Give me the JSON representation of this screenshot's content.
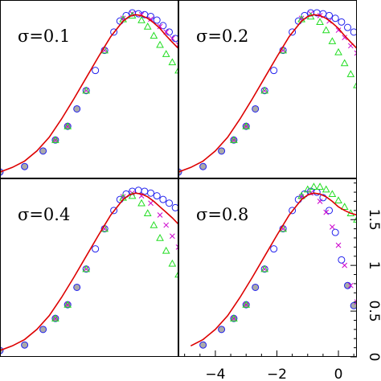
{
  "chart_data": {
    "type": "scatter",
    "layout": "2x2 grid of panels sharing axes",
    "xaxis": {
      "ticks": [
        -4,
        -2,
        0
      ],
      "tick_labels": [
        "−4",
        "−2",
        "0"
      ],
      "range": [
        -5.2,
        0.6
      ]
    },
    "yaxis": {
      "ticks": [
        0,
        0.5,
        1,
        1.5
      ],
      "tick_labels": [
        "0",
        "0.5",
        "1",
        "1.5"
      ],
      "range": [
        0,
        1.95
      ],
      "position": "right"
    },
    "colors": {
      "curve": "#dd0000",
      "circles": "#2222ee",
      "crosses": "#cc00cc",
      "triangles": "#22dd22",
      "overlap_fill": "#aaaaaa"
    },
    "panels": [
      {
        "label": "σ=0.1",
        "curve": {
          "x": [
            -5.2,
            -4.8,
            -4.4,
            -4,
            -3.6,
            -3.2,
            -2.8,
            -2.4,
            -2,
            -1.6,
            -1.2,
            -1,
            -0.8,
            -0.6,
            -0.4,
            -0.2,
            0,
            0.2,
            0.4,
            0.6
          ],
          "y": [
            0.07,
            0.12,
            0.19,
            0.3,
            0.45,
            0.65,
            0.87,
            1.1,
            1.33,
            1.55,
            1.72,
            1.77,
            1.79,
            1.78,
            1.75,
            1.7,
            1.64,
            1.56,
            1.49,
            1.42
          ]
        },
        "series": [
          {
            "marker": "circle",
            "x": [
              -5.2,
              -4.4,
              -3.8,
              -3.4,
              -3,
              -2.7,
              -2.4,
              -2.1,
              -1.8,
              -1.5,
              -1.3,
              -1.1,
              -0.9,
              -0.7,
              -0.5,
              -0.3,
              -0.1,
              0.1,
              0.3,
              0.5
            ],
            "y": [
              0.07,
              0.13,
              0.3,
              0.42,
              0.57,
              0.76,
              0.96,
              1.18,
              1.4,
              1.6,
              1.72,
              1.78,
              1.81,
              1.8,
              1.79,
              1.77,
              1.73,
              1.67,
              1.6,
              1.53
            ]
          },
          {
            "marker": "cross",
            "x": [
              -3.4,
              -3,
              -2.4,
              -1.8,
              -1.2,
              -0.9,
              -0.6,
              -0.3,
              0,
              0.2,
              0.4,
              0.6
            ],
            "y": [
              0.42,
              0.57,
              0.96,
              1.4,
              1.75,
              1.8,
              1.79,
              1.74,
              1.66,
              1.6,
              1.53,
              1.46
            ]
          },
          {
            "marker": "triangle",
            "x": [
              -3.4,
              -3,
              -2.4,
              -1.8,
              -1.2,
              -0.9,
              -0.6,
              -0.4,
              -0.2,
              0,
              0.2,
              0.4,
              0.6
            ],
            "y": [
              0.42,
              0.57,
              0.96,
              1.4,
              1.74,
              1.78,
              1.73,
              1.66,
              1.56,
              1.46,
              1.36,
              1.27,
              1.18
            ]
          }
        ]
      },
      {
        "label": "σ=0.2",
        "curve": {
          "x": [
            -5.2,
            -4.8,
            -4.4,
            -4,
            -3.6,
            -3.2,
            -2.8,
            -2.4,
            -2,
            -1.6,
            -1.2,
            -1,
            -0.8,
            -0.6,
            -0.4,
            -0.2,
            0,
            0.2,
            0.4,
            0.6
          ],
          "y": [
            0.07,
            0.12,
            0.19,
            0.3,
            0.45,
            0.65,
            0.87,
            1.1,
            1.33,
            1.55,
            1.72,
            1.77,
            1.79,
            1.78,
            1.75,
            1.7,
            1.64,
            1.56,
            1.49,
            1.42
          ]
        },
        "series": [
          {
            "marker": "circle",
            "x": [
              -5.2,
              -4.4,
              -3.8,
              -3.4,
              -3,
              -2.7,
              -2.4,
              -2.1,
              -1.8,
              -1.5,
              -1.3,
              -1.1,
              -0.9,
              -0.7,
              -0.5,
              -0.3,
              -0.1,
              0.1,
              0.3,
              0.5
            ],
            "y": [
              0.07,
              0.13,
              0.3,
              0.42,
              0.57,
              0.76,
              0.96,
              1.18,
              1.4,
              1.6,
              1.72,
              1.78,
              1.81,
              1.81,
              1.8,
              1.78,
              1.75,
              1.71,
              1.65,
              1.6
            ]
          },
          {
            "marker": "cross",
            "x": [
              -3.4,
              -3,
              -2.4,
              -1.8,
              -1.2,
              -0.9,
              -0.6,
              -0.3,
              0,
              0.2,
              0.4,
              0.6
            ],
            "y": [
              0.42,
              0.57,
              0.96,
              1.4,
              1.75,
              1.8,
              1.78,
              1.72,
              1.62,
              1.54,
              1.45,
              1.37
            ]
          },
          {
            "marker": "triangle",
            "x": [
              -3.4,
              -3,
              -2.4,
              -1.8,
              -1.2,
              -0.9,
              -0.6,
              -0.4,
              -0.2,
              0,
              0.2,
              0.4,
              0.6
            ],
            "y": [
              0.42,
              0.57,
              0.96,
              1.4,
              1.74,
              1.77,
              1.71,
              1.62,
              1.5,
              1.38,
              1.26,
              1.14,
              1.02
            ]
          }
        ]
      },
      {
        "label": "σ=0.4",
        "curve": {
          "x": [
            -5.2,
            -4.8,
            -4.4,
            -4,
            -3.6,
            -3.2,
            -2.8,
            -2.4,
            -2,
            -1.6,
            -1.2,
            -1,
            -0.8,
            -0.6,
            -0.4,
            -0.2,
            0,
            0.2,
            0.4,
            0.6
          ],
          "y": [
            0.07,
            0.12,
            0.19,
            0.3,
            0.45,
            0.65,
            0.87,
            1.1,
            1.33,
            1.55,
            1.72,
            1.77,
            1.79,
            1.78,
            1.75,
            1.7,
            1.64,
            1.58,
            1.52,
            1.45
          ]
        },
        "series": [
          {
            "marker": "circle",
            "x": [
              -5.2,
              -4.4,
              -3.8,
              -3.4,
              -3,
              -2.7,
              -2.4,
              -2.1,
              -1.8,
              -1.5,
              -1.3,
              -1.1,
              -0.9,
              -0.7,
              -0.5,
              -0.3,
              -0.1,
              0.1,
              0.3,
              0.5
            ],
            "y": [
              0.07,
              0.13,
              0.3,
              0.42,
              0.57,
              0.76,
              0.96,
              1.18,
              1.4,
              1.6,
              1.72,
              1.78,
              1.81,
              1.82,
              1.81,
              1.79,
              1.76,
              1.72,
              1.68,
              1.63
            ]
          },
          {
            "marker": "cross",
            "x": [
              -3.4,
              -3,
              -2.4,
              -1.8,
              -1.2,
              -0.9,
              -0.6,
              -0.3,
              0,
              0.2,
              0.4,
              0.6
            ],
            "y": [
              0.42,
              0.57,
              0.96,
              1.4,
              1.75,
              1.79,
              1.76,
              1.68,
              1.55,
              1.44,
              1.32,
              1.2
            ]
          },
          {
            "marker": "triangle",
            "x": [
              -3.4,
              -3,
              -2.4,
              -1.8,
              -1.2,
              -0.9,
              -0.6,
              -0.4,
              -0.2,
              0,
              0.2,
              0.4,
              0.6
            ],
            "y": [
              0.42,
              0.57,
              0.96,
              1.4,
              1.74,
              1.76,
              1.68,
              1.57,
              1.44,
              1.3,
              1.16,
              1.02,
              0.9
            ]
          }
        ]
      },
      {
        "label": "σ=0.8",
        "curve": {
          "x": [
            -4.8,
            -4.4,
            -4,
            -3.6,
            -3.2,
            -2.8,
            -2.4,
            -2,
            -1.6,
            -1.2,
            -1,
            -0.8,
            -0.6,
            -0.4,
            -0.2,
            0,
            0.2,
            0.4,
            0.6
          ],
          "y": [
            0.12,
            0.19,
            0.3,
            0.45,
            0.65,
            0.87,
            1.1,
            1.33,
            1.55,
            1.72,
            1.77,
            1.79,
            1.78,
            1.75,
            1.7,
            1.64,
            1.6,
            1.57,
            1.55
          ]
        },
        "series": [
          {
            "marker": "circle",
            "x": [
              -4.4,
              -3.8,
              -3.4,
              -3,
              -2.7,
              -2.4,
              -2.1,
              -1.8,
              -1.5,
              -1.3,
              -1.1,
              -0.9,
              -0.7,
              -0.5,
              -0.3,
              -0.1,
              0.1,
              0.3,
              0.5
            ],
            "y": [
              0.13,
              0.3,
              0.42,
              0.57,
              0.76,
              0.96,
              1.18,
              1.4,
              1.6,
              1.72,
              1.78,
              1.81,
              1.8,
              1.74,
              1.6,
              1.36,
              1.06,
              0.78,
              0.56
            ]
          },
          {
            "marker": "cross",
            "x": [
              -3.4,
              -3,
              -2.4,
              -1.8,
              -1.2,
              -0.9,
              -0.6,
              -0.4,
              -0.2,
              0,
              0.2,
              0.4,
              0.6
            ],
            "y": [
              0.42,
              0.57,
              0.96,
              1.4,
              1.75,
              1.79,
              1.7,
              1.58,
              1.42,
              1.22,
              1.0,
              0.78,
              0.6
            ]
          },
          {
            "marker": "triangle",
            "x": [
              -3.4,
              -3,
              -2.4,
              -1.8,
              -1.2,
              -1,
              -0.8,
              -0.6,
              -0.4,
              -0.2,
              0,
              0.2,
              0.4,
              0.6
            ],
            "y": [
              0.42,
              0.57,
              0.96,
              1.4,
              1.76,
              1.83,
              1.86,
              1.86,
              1.83,
              1.78,
              1.71,
              1.64,
              1.57,
              1.5
            ]
          }
        ]
      }
    ]
  }
}
